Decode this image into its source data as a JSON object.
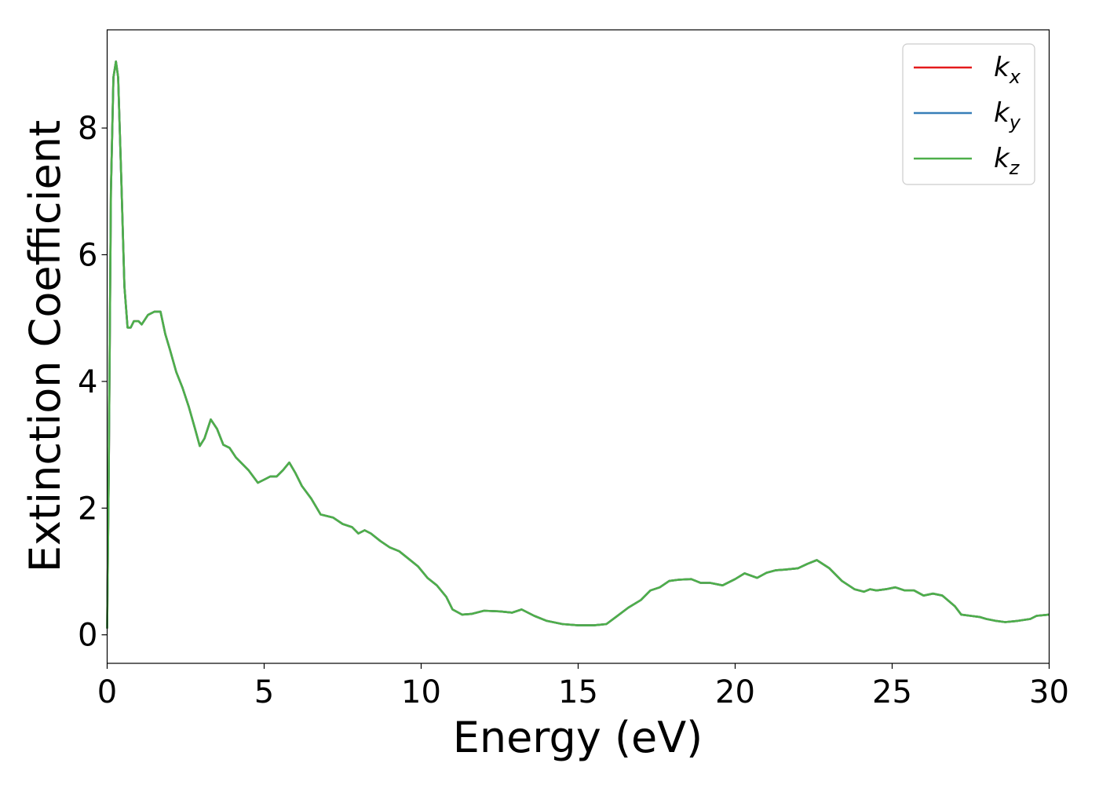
{
  "chart_data": {
    "type": "line",
    "xlabel": "Energy (eV)",
    "ylabel": "Extinction Coefficient",
    "xlim": [
      0,
      30
    ],
    "ylim": [
      -0.45,
      9.55
    ],
    "xticks": [
      0,
      5,
      10,
      15,
      20,
      25,
      30
    ],
    "yticks": [
      0,
      2,
      4,
      6,
      8
    ],
    "grid": false,
    "legend_position": "top-right",
    "series": [
      {
        "name": "k",
        "subscript": "x",
        "color": "#e41a1c"
      },
      {
        "name": "k",
        "subscript": "y",
        "color": "#377eb8"
      },
      {
        "name": "k",
        "subscript": "z",
        "color": "#4daf4a"
      }
    ],
    "x": [
      0,
      0.05,
      0.12,
      0.2,
      0.28,
      0.35,
      0.45,
      0.55,
      0.65,
      0.75,
      0.85,
      1.0,
      1.1,
      1.3,
      1.5,
      1.7,
      1.85,
      2.0,
      2.2,
      2.4,
      2.6,
      2.8,
      2.95,
      3.1,
      3.3,
      3.5,
      3.7,
      3.9,
      4.1,
      4.3,
      4.5,
      4.8,
      5.0,
      5.2,
      5.4,
      5.6,
      5.8,
      6.0,
      6.2,
      6.5,
      6.8,
      7.2,
      7.5,
      7.8,
      8.0,
      8.2,
      8.4,
      8.7,
      9.0,
      9.3,
      9.6,
      9.9,
      10.2,
      10.5,
      10.8,
      11.0,
      11.3,
      11.6,
      12.0,
      12.5,
      12.9,
      13.2,
      13.6,
      14.0,
      14.5,
      15.0,
      15.5,
      15.9,
      16.2,
      16.6,
      17.0,
      17.3,
      17.6,
      17.9,
      18.2,
      18.6,
      18.9,
      19.2,
      19.6,
      20.0,
      20.3,
      20.7,
      21.0,
      21.3,
      21.6,
      22.0,
      22.3,
      22.6,
      23.0,
      23.4,
      23.8,
      24.1,
      24.3,
      24.5,
      24.8,
      25.1,
      25.4,
      25.7,
      26.0,
      26.3,
      26.6,
      27.0,
      27.2,
      27.5,
      27.8,
      28.0,
      28.3,
      28.6,
      29.0,
      29.4,
      29.6,
      30.0
    ],
    "values": [
      0.1,
      2.5,
      7.0,
      8.8,
      9.05,
      8.8,
      7.2,
      5.5,
      4.85,
      4.85,
      4.95,
      4.95,
      4.9,
      5.05,
      5.1,
      5.1,
      4.75,
      4.5,
      4.15,
      3.9,
      3.6,
      3.25,
      2.98,
      3.1,
      3.4,
      3.25,
      3.0,
      2.95,
      2.8,
      2.7,
      2.6,
      2.4,
      2.45,
      2.5,
      2.5,
      2.6,
      2.72,
      2.55,
      2.35,
      2.15,
      1.9,
      1.85,
      1.75,
      1.7,
      1.6,
      1.65,
      1.6,
      1.48,
      1.38,
      1.32,
      1.2,
      1.08,
      0.9,
      0.78,
      0.6,
      0.4,
      0.32,
      0.33,
      0.38,
      0.37,
      0.35,
      0.4,
      0.3,
      0.22,
      0.17,
      0.15,
      0.15,
      0.17,
      0.28,
      0.43,
      0.55,
      0.7,
      0.75,
      0.85,
      0.87,
      0.88,
      0.82,
      0.82,
      0.78,
      0.88,
      0.97,
      0.9,
      0.98,
      1.02,
      1.03,
      1.05,
      1.12,
      1.18,
      1.05,
      0.85,
      0.72,
      0.68,
      0.72,
      0.7,
      0.72,
      0.75,
      0.7,
      0.7,
      0.62,
      0.65,
      0.62,
      0.45,
      0.32,
      0.3,
      0.28,
      0.25,
      0.22,
      0.2,
      0.22,
      0.25,
      0.3,
      0.32
    ]
  }
}
